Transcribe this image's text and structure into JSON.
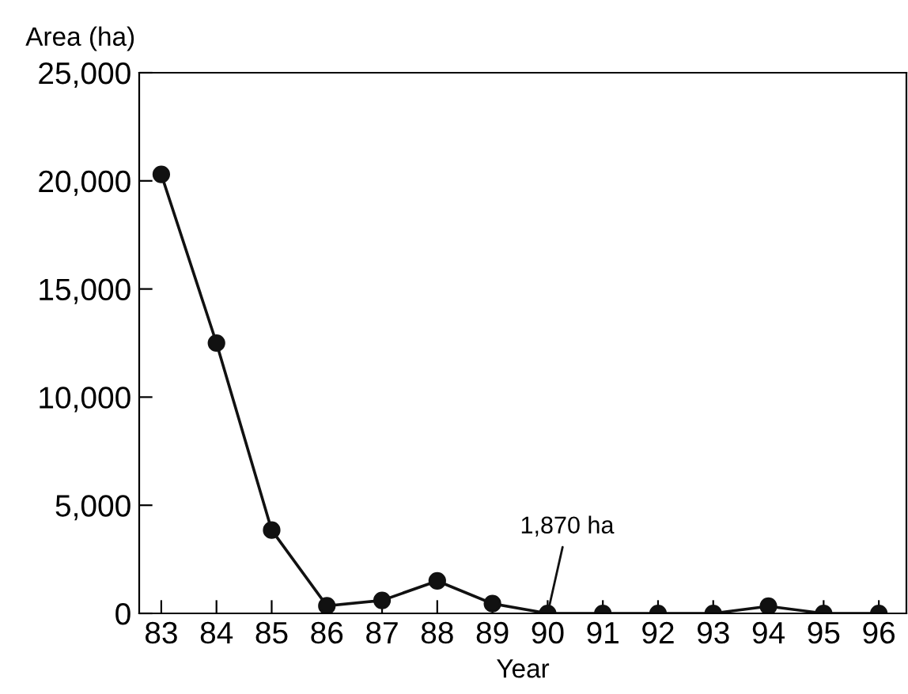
{
  "chart_data": {
    "type": "line",
    "ylabel": "Area (ha)",
    "xlabel": "Year",
    "x": [
      83,
      84,
      85,
      86,
      87,
      88,
      89,
      90,
      91,
      92,
      93,
      94,
      95,
      96
    ],
    "values": [
      20300,
      12500,
      3850,
      350,
      600,
      1500,
      450,
      0,
      0,
      0,
      0,
      330,
      0,
      0
    ],
    "color": "#111111",
    "marker": "circle",
    "line_style": "solid",
    "xlim": [
      82.6,
      96.5
    ],
    "xticks": [
      83,
      84,
      85,
      86,
      87,
      88,
      89,
      90,
      91,
      92,
      93,
      94,
      95,
      96
    ],
    "ylim": [
      0,
      25000
    ],
    "yticks": [
      {
        "value": 0,
        "label": "0"
      },
      {
        "value": 5000,
        "label": "5,000"
      },
      {
        "value": 10000,
        "label": "10,000"
      },
      {
        "value": 15000,
        "label": "15,000"
      },
      {
        "value": 20000,
        "label": "20,000"
      },
      {
        "value": 25000,
        "label": "25,000"
      }
    ],
    "annotations": [
      {
        "text": "1,870 ha",
        "x": 90,
        "y": 0
      }
    ],
    "grid": false,
    "legend": false
  }
}
